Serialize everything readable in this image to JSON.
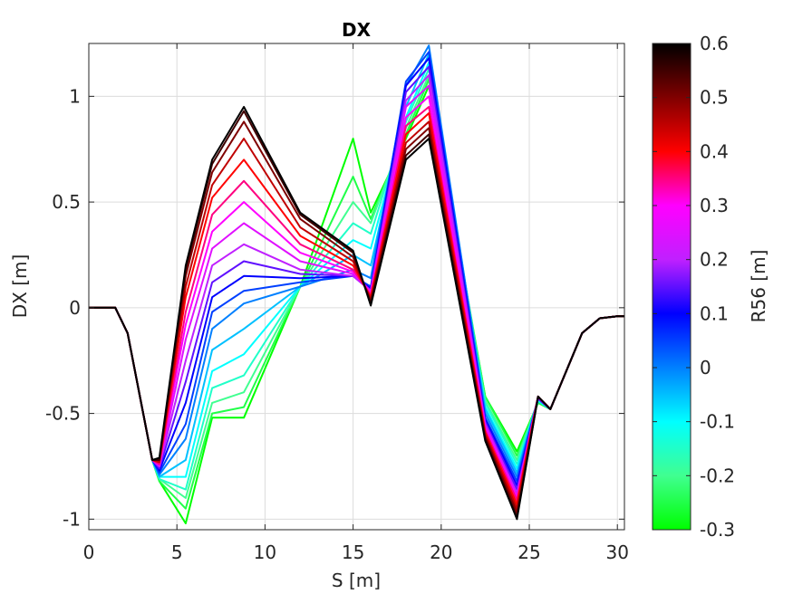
{
  "chart_data": {
    "type": "line",
    "title": "DX",
    "xlabel": "S [m]",
    "ylabel": "DX [m]",
    "xlim": [
      0,
      30.4
    ],
    "ylim": [
      -1.05,
      1.25
    ],
    "grid": true,
    "x_ticks": [
      "0",
      "5",
      "10",
      "15",
      "20",
      "25",
      "30"
    ],
    "y_ticks": [
      "-1",
      "-0.5",
      "0",
      "0.5",
      "1"
    ],
    "colorbar": {
      "label": "R56 [m]",
      "range": [
        -0.3,
        0.6
      ],
      "ticks": [
        "0.6",
        "0.5",
        "0.4",
        "0.3",
        "0.2",
        "0.1",
        "0",
        "-0.1",
        "-0.2",
        "-0.3"
      ],
      "colormap_stops": [
        {
          "value": -0.3,
          "color": "#00ff00"
        },
        {
          "value": -0.2,
          "color": "#40ff90"
        },
        {
          "value": -0.1,
          "color": "#00ffff"
        },
        {
          "value": 0.0,
          "color": "#0080ff"
        },
        {
          "value": 0.1,
          "color": "#0000ff"
        },
        {
          "value": 0.2,
          "color": "#c020ff"
        },
        {
          "value": 0.3,
          "color": "#ff00ff"
        },
        {
          "value": 0.4,
          "color": "#ff0000"
        },
        {
          "value": 0.5,
          "color": "#800000"
        },
        {
          "value": 0.6,
          "color": "#000000"
        }
      ]
    },
    "x": [
      0,
      1.5,
      2.2,
      3.6,
      4.0,
      5.5,
      7.0,
      8.8,
      12.0,
      15.0,
      16.0,
      18.0,
      19.3,
      22.5,
      24.3,
      25.5,
      26.2,
      28.0,
      29.0,
      30.0,
      30.4
    ],
    "series": [
      {
        "r56": -0.3,
        "values": [
          0,
          0,
          -0.12,
          -0.72,
          -0.82,
          -1.02,
          -0.52,
          -0.52,
          0.1,
          0.8,
          0.45,
          0.8,
          1.05,
          -0.42,
          -0.68,
          -0.45,
          -0.48,
          -0.12,
          -0.05,
          -0.04,
          -0.04
        ]
      },
      {
        "r56": -0.25,
        "values": [
          0,
          0,
          -0.12,
          -0.72,
          -0.82,
          -0.95,
          -0.5,
          -0.47,
          0.1,
          0.62,
          0.42,
          0.82,
          1.08,
          -0.42,
          -0.7,
          -0.45,
          -0.48,
          -0.12,
          -0.05,
          -0.04,
          -0.04
        ]
      },
      {
        "r56": -0.2,
        "values": [
          0,
          0,
          -0.12,
          -0.72,
          -0.81,
          -0.9,
          -0.45,
          -0.4,
          0.1,
          0.5,
          0.4,
          0.85,
          1.1,
          -0.44,
          -0.72,
          -0.44,
          -0.48,
          -0.12,
          -0.05,
          -0.04,
          -0.04
        ]
      },
      {
        "r56": -0.15,
        "values": [
          0,
          0,
          -0.12,
          -0.72,
          -0.81,
          -0.86,
          -0.38,
          -0.32,
          0.1,
          0.4,
          0.35,
          0.88,
          1.13,
          -0.45,
          -0.74,
          -0.44,
          -0.48,
          -0.12,
          -0.05,
          -0.04,
          -0.04
        ]
      },
      {
        "r56": -0.1,
        "values": [
          0,
          0,
          -0.12,
          -0.72,
          -0.8,
          -0.8,
          -0.3,
          -0.22,
          0.1,
          0.32,
          0.28,
          0.9,
          1.16,
          -0.47,
          -0.76,
          -0.44,
          -0.48,
          -0.12,
          -0.05,
          -0.04,
          -0.04
        ]
      },
      {
        "r56": -0.05,
        "values": [
          0,
          0,
          -0.12,
          -0.72,
          -0.8,
          -0.72,
          -0.2,
          -0.1,
          0.1,
          0.25,
          0.2,
          0.95,
          1.2,
          -0.48,
          -0.78,
          -0.43,
          -0.48,
          -0.12,
          -0.05,
          -0.04,
          -0.04
        ]
      },
      {
        "r56": 0.0,
        "values": [
          0,
          0,
          -0.12,
          -0.72,
          -0.79,
          -0.62,
          -0.1,
          0.02,
          0.1,
          0.18,
          0.14,
          1.05,
          1.24,
          -0.5,
          -0.8,
          -0.43,
          -0.48,
          -0.12,
          -0.05,
          -0.04,
          -0.04
        ]
      },
      {
        "r56": 0.05,
        "values": [
          0,
          0,
          -0.12,
          -0.72,
          -0.78,
          -0.55,
          -0.02,
          0.08,
          0.12,
          0.15,
          0.1,
          1.07,
          1.21,
          -0.52,
          -0.82,
          -0.43,
          -0.48,
          -0.12,
          -0.05,
          -0.04,
          -0.04
        ]
      },
      {
        "r56": 0.1,
        "values": [
          0,
          0,
          -0.12,
          -0.72,
          -0.77,
          -0.45,
          0.05,
          0.15,
          0.14,
          0.15,
          0.09,
          1.05,
          1.18,
          -0.53,
          -0.84,
          -0.43,
          -0.48,
          -0.12,
          -0.05,
          -0.04,
          -0.04
        ]
      },
      {
        "r56": 0.15,
        "values": [
          0,
          0,
          -0.12,
          -0.72,
          -0.76,
          -0.35,
          0.12,
          0.22,
          0.16,
          0.15,
          0.08,
          1.02,
          1.14,
          -0.54,
          -0.86,
          -0.43,
          -0.48,
          -0.12,
          -0.05,
          -0.04,
          -0.04
        ]
      },
      {
        "r56": 0.2,
        "values": [
          0,
          0,
          -0.12,
          -0.72,
          -0.75,
          -0.25,
          0.2,
          0.3,
          0.18,
          0.15,
          0.08,
          0.98,
          1.1,
          -0.55,
          -0.88,
          -0.42,
          -0.48,
          -0.12,
          -0.05,
          -0.04,
          -0.04
        ]
      },
      {
        "r56": 0.25,
        "values": [
          0,
          0,
          -0.12,
          -0.72,
          -0.75,
          -0.15,
          0.28,
          0.4,
          0.22,
          0.16,
          0.08,
          0.95,
          1.05,
          -0.56,
          -0.89,
          -0.42,
          -0.48,
          -0.12,
          -0.05,
          -0.04,
          -0.04
        ]
      },
      {
        "r56": 0.3,
        "values": [
          0,
          0,
          -0.12,
          -0.72,
          -0.74,
          -0.08,
          0.36,
          0.5,
          0.26,
          0.17,
          0.07,
          0.9,
          1.0,
          -0.57,
          -0.9,
          -0.42,
          -0.48,
          -0.12,
          -0.05,
          -0.04,
          -0.04
        ]
      },
      {
        "r56": 0.35,
        "values": [
          0,
          0,
          -0.12,
          -0.72,
          -0.74,
          -0.02,
          0.44,
          0.6,
          0.3,
          0.18,
          0.06,
          0.86,
          0.95,
          -0.58,
          -0.91,
          -0.42,
          -0.48,
          -0.12,
          -0.05,
          -0.04,
          -0.04
        ]
      },
      {
        "r56": 0.4,
        "values": [
          0,
          0,
          -0.12,
          -0.72,
          -0.73,
          0.05,
          0.52,
          0.7,
          0.34,
          0.2,
          0.05,
          0.82,
          0.92,
          -0.59,
          -0.93,
          -0.42,
          -0.48,
          -0.12,
          -0.05,
          -0.04,
          -0.04
        ]
      },
      {
        "r56": 0.45,
        "values": [
          0,
          0,
          -0.12,
          -0.72,
          -0.73,
          0.1,
          0.58,
          0.8,
          0.38,
          0.22,
          0.04,
          0.78,
          0.88,
          -0.6,
          -0.95,
          -0.42,
          -0.48,
          -0.12,
          -0.05,
          -0.04,
          -0.04
        ]
      },
      {
        "r56": 0.5,
        "values": [
          0,
          0,
          -0.12,
          -0.72,
          -0.72,
          0.15,
          0.64,
          0.88,
          0.42,
          0.24,
          0.03,
          0.75,
          0.85,
          -0.61,
          -0.97,
          -0.42,
          -0.48,
          -0.12,
          -0.05,
          -0.04,
          -0.04
        ]
      },
      {
        "r56": 0.55,
        "values": [
          0,
          0,
          -0.12,
          -0.72,
          -0.72,
          0.18,
          0.68,
          0.93,
          0.44,
          0.26,
          0.02,
          0.72,
          0.82,
          -0.62,
          -0.99,
          -0.42,
          -0.48,
          -0.12,
          -0.05,
          -0.04,
          -0.04
        ]
      },
      {
        "r56": 0.6,
        "values": [
          0,
          0,
          -0.12,
          -0.72,
          -0.71,
          0.2,
          0.7,
          0.95,
          0.45,
          0.27,
          0.01,
          0.7,
          0.8,
          -0.63,
          -1.0,
          -0.42,
          -0.48,
          -0.12,
          -0.05,
          -0.04,
          -0.04
        ]
      }
    ]
  }
}
